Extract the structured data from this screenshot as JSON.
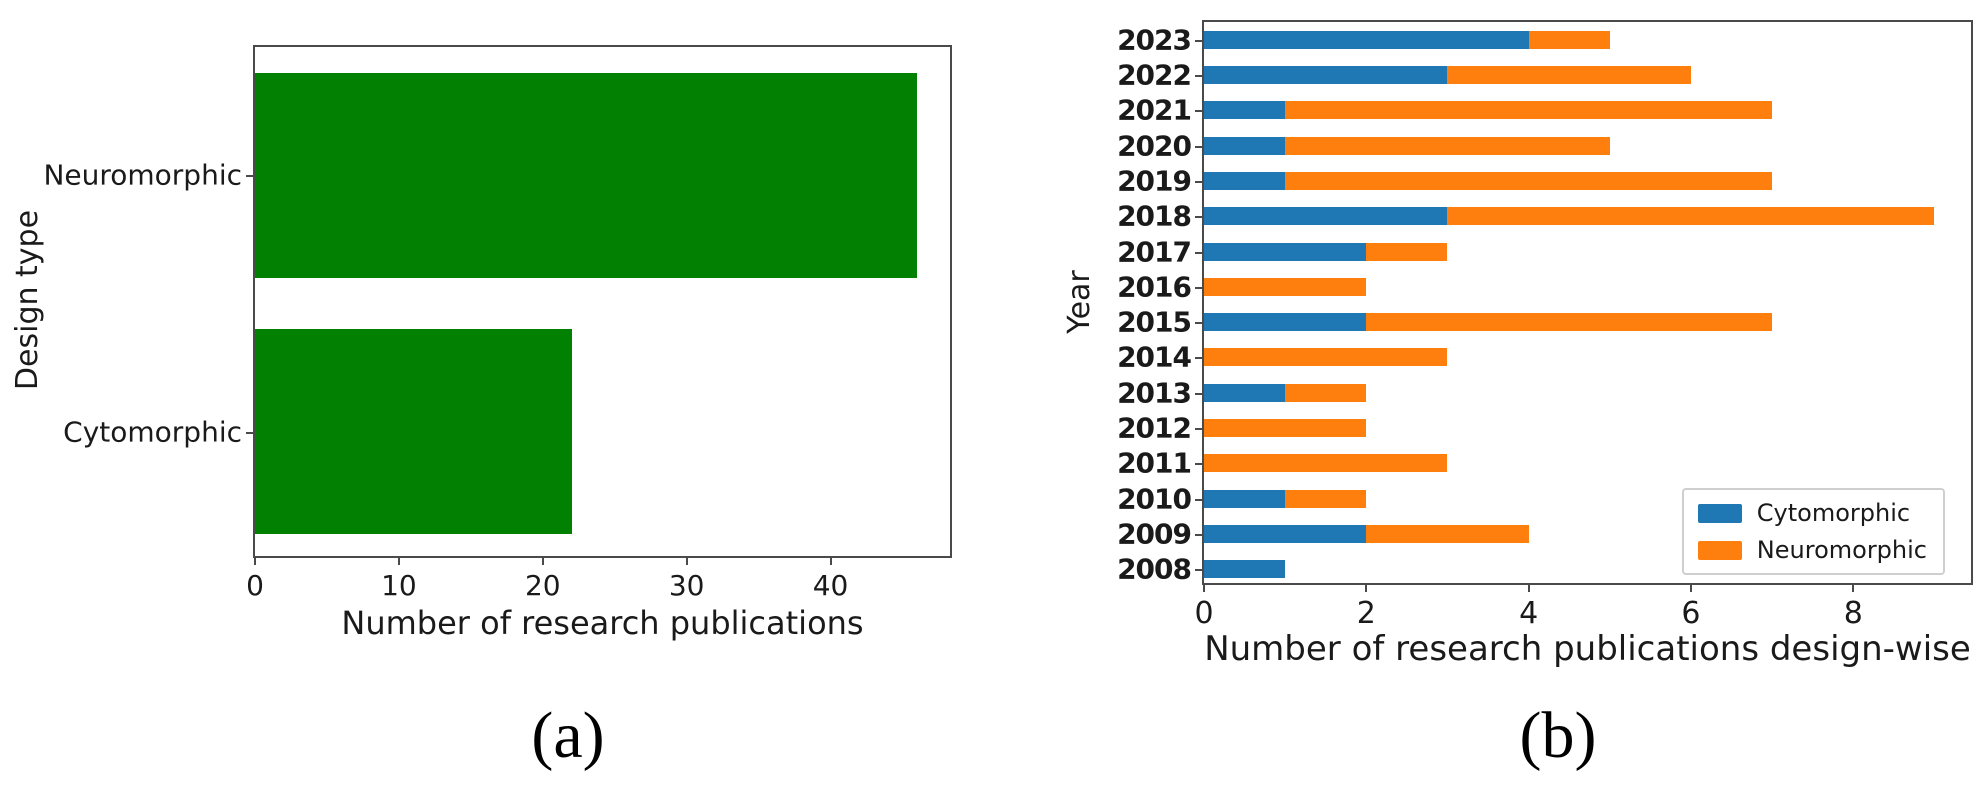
{
  "figure": {
    "caption_a": "(a)",
    "caption_b": "(b)"
  },
  "chart_data": [
    {
      "type": "bar",
      "orientation": "horizontal",
      "categories": [
        "Neuromorphic",
        "Cytomorphic"
      ],
      "values": [
        46,
        22
      ],
      "bar_color": "#028002",
      "xlabel": "Number of research publications",
      "ylabel": "Design type",
      "xticks": [
        0,
        10,
        20,
        30,
        40
      ],
      "xlim": [
        0,
        48.3
      ],
      "grid": false,
      "legend": null
    },
    {
      "type": "bar",
      "orientation": "horizontal",
      "stacked": true,
      "categories": [
        "2023",
        "2022",
        "2021",
        "2020",
        "2019",
        "2018",
        "2017",
        "2016",
        "2015",
        "2014",
        "2013",
        "2012",
        "2011",
        "2010",
        "2009",
        "2008"
      ],
      "series": [
        {
          "name": "Cytomorphic",
          "color": "#1f77b4",
          "values": [
            4,
            3,
            1,
            1,
            1,
            3,
            2,
            0,
            2,
            0,
            1,
            0,
            0,
            1,
            2,
            1
          ]
        },
        {
          "name": "Neuromorphic",
          "color": "#ff7f0e",
          "values": [
            1,
            3,
            6,
            4,
            6,
            6,
            1,
            2,
            5,
            3,
            1,
            2,
            3,
            1,
            2,
            0
          ]
        }
      ],
      "xlabel": "Number of research publications design-wise",
      "ylabel": "Year",
      "xticks": [
        0,
        2,
        4,
        6,
        8
      ],
      "xlim": [
        0,
        9.45
      ],
      "grid": false,
      "legend": {
        "position": "lower right",
        "entries": [
          "Cytomorphic",
          "Neuromorphic"
        ]
      }
    }
  ]
}
